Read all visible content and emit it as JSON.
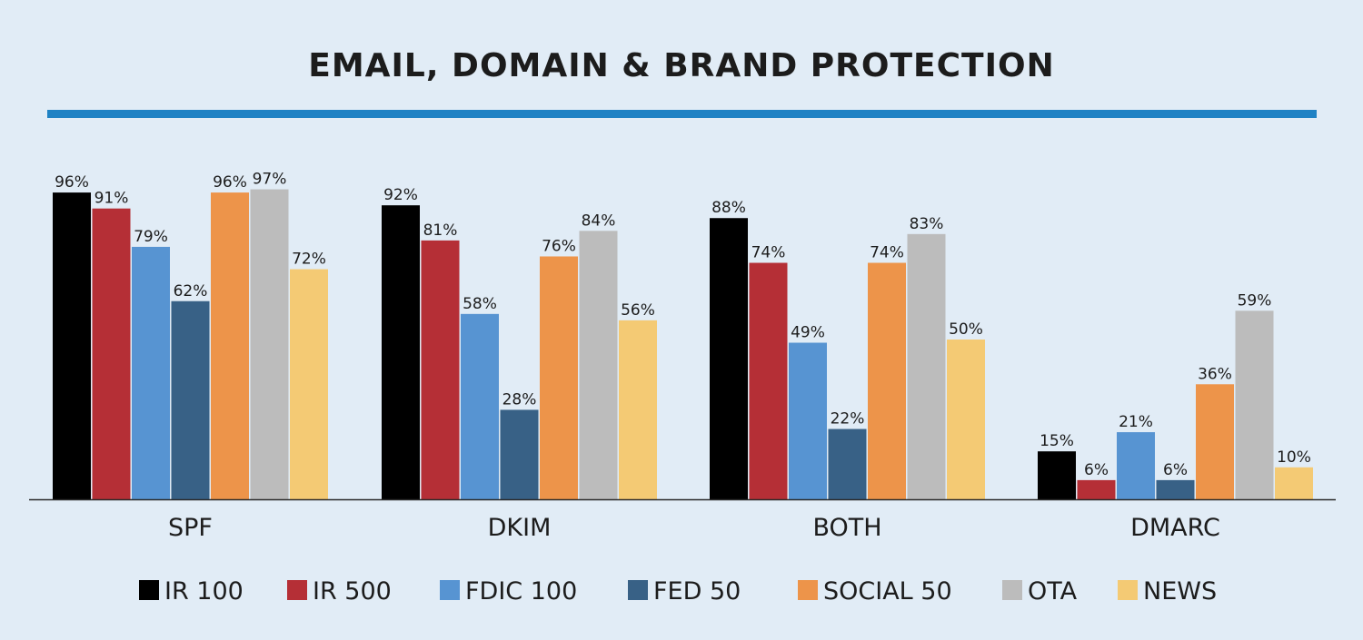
{
  "chart_data": {
    "type": "bar",
    "title": "EMAIL, DOMAIN & BRAND PROTECTION",
    "categories": [
      "SPF",
      "DKIM",
      "BOTH",
      "DMARC"
    ],
    "series": [
      {
        "name": "IR 100",
        "color": "#000000",
        "values": [
          96,
          92,
          88,
          15
        ]
      },
      {
        "name": "IR 500",
        "color": "#b52f36",
        "values": [
          91,
          81,
          74,
          6
        ]
      },
      {
        "name": "FDIC 100",
        "color": "#5794d2",
        "values": [
          79,
          58,
          49,
          21
        ]
      },
      {
        "name": "FED 50",
        "color": "#386186",
        "values": [
          62,
          28,
          22,
          6
        ]
      },
      {
        "name": "SOCIAL 50",
        "color": "#ed944a",
        "values": [
          96,
          76,
          74,
          36
        ]
      },
      {
        "name": "OTA",
        "color": "#bcbcbc",
        "values": [
          97,
          84,
          83,
          59
        ]
      },
      {
        "name": "NEWS",
        "color": "#f4ca74",
        "values": [
          72,
          56,
          50,
          10
        ]
      }
    ],
    "value_suffix": "%",
    "ylim": [
      0,
      100
    ],
    "legend_position": "bottom",
    "grid": false
  }
}
